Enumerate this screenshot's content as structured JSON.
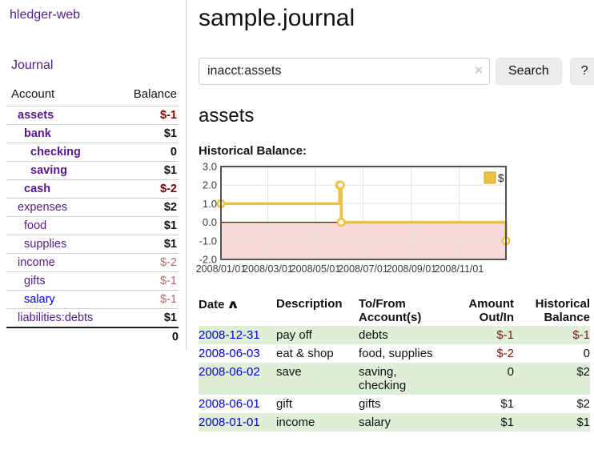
{
  "palette": {
    "link_purple": "#551a8b",
    "link_blue": "#0000dd",
    "negative_strong": "#7f0000",
    "negative_soft": "#b36a6a",
    "table_negative": "#7f1a1a",
    "row_stripe_green": "#dfeed6",
    "series_gold": "#EDC240",
    "chart_negative_fill": "#f8d9d9",
    "zero_line": "#8b0000",
    "grid_line": "#e4e4e4",
    "plot_border": "#545454",
    "clear_icon_color": "#cfc2e2"
  },
  "sidebar": {
    "app_title": "hledger-web",
    "journal_label": "Journal",
    "accounts_table": {
      "headers": {
        "account": "Account",
        "balance": "Balance"
      },
      "rows": [
        {
          "name": "assets",
          "depth": 1,
          "bold": true,
          "balance": "$-1",
          "negative": true,
          "link_color": "purple"
        },
        {
          "name": "bank",
          "depth": 2,
          "bold": true,
          "balance": "$1",
          "negative": false,
          "link_color": "purple"
        },
        {
          "name": "checking",
          "depth": 3,
          "bold": true,
          "balance": "0",
          "negative": false,
          "link_color": "purple"
        },
        {
          "name": "saving",
          "depth": 3,
          "bold": true,
          "balance": "$1",
          "negative": false,
          "link_color": "purple"
        },
        {
          "name": "cash",
          "depth": 2,
          "bold": true,
          "balance": "$-2",
          "negative": true,
          "link_color": "purple"
        },
        {
          "name": "expenses",
          "depth": 1,
          "bold": false,
          "balance": "$2",
          "negative": false,
          "link_color": "purple"
        },
        {
          "name": "food",
          "depth": 2,
          "bold": false,
          "balance": "$1",
          "negative": false,
          "link_color": "purple"
        },
        {
          "name": "supplies",
          "depth": 2,
          "bold": false,
          "balance": "$1",
          "negative": false,
          "link_color": "purple"
        },
        {
          "name": "income",
          "depth": 1,
          "bold": false,
          "balance": "$-2",
          "negative": true,
          "link_color": "purple"
        },
        {
          "name": "gifts",
          "depth": 2,
          "bold": false,
          "balance": "$-1",
          "negative": true,
          "link_color": "purple"
        },
        {
          "name": "salary",
          "depth": 2,
          "bold": false,
          "balance": "$-1",
          "negative": true,
          "link_color": "blue"
        },
        {
          "name": "liabilities:debts",
          "depth": 1,
          "bold": false,
          "balance": "$1",
          "negative": false,
          "link_color": "purple"
        }
      ],
      "total": "0"
    }
  },
  "header": {
    "title": "sample.journal"
  },
  "search": {
    "value": "inacct:assets",
    "clear_icon": "×",
    "button_label": "Search",
    "help_label": "?"
  },
  "account_page": {
    "title": "assets",
    "chart_label": "Historical Balance:"
  },
  "chart_data": {
    "type": "line",
    "step": true,
    "title": "Historical Balance",
    "series": [
      {
        "name": "$",
        "color": "#EDC240",
        "points": [
          {
            "date": "2008-01-01",
            "value": 1
          },
          {
            "date": "2008-06-01",
            "value": 2
          },
          {
            "date": "2008-06-02",
            "value": 2
          },
          {
            "date": "2008-06-03",
            "value": 0
          },
          {
            "date": "2008-12-31",
            "value": -1
          }
        ]
      }
    ],
    "ylim": [
      -2,
      3
    ],
    "y_ticks": [
      "3.0",
      "2.0",
      "1.0",
      "0.0",
      "-1.0",
      "-2.0"
    ],
    "y_tick_values": [
      3,
      2,
      1,
      0,
      -1,
      -2
    ],
    "x_ticks": [
      "2008/01/01",
      "2008/03/01",
      "2008/05/01",
      "2008/07/01",
      "2008/09/01",
      "2008/11/01"
    ],
    "x_range": [
      "2008-01-01",
      "2008-12-31"
    ],
    "grid": true,
    "negative_region_shaded": true,
    "legend": {
      "position": "top-right",
      "label": "$",
      "swatch_color": "#EDC240"
    }
  },
  "register_table": {
    "headers": {
      "date": "Date",
      "sort_indicator": "∧",
      "description": "Description",
      "tofrom": "To/From\nAccount(s)",
      "amount": "Amount\nOut/In",
      "balance": "Historical\nBalance"
    },
    "rows": [
      {
        "date": "2008-12-31",
        "description": "pay off",
        "accounts": "debts",
        "amount": "$-1",
        "amount_negative": true,
        "balance": "$-1",
        "balance_negative": true,
        "shaded": true
      },
      {
        "date": "2008-06-03",
        "description": "eat & shop",
        "accounts": "food, supplies",
        "amount": "$-2",
        "amount_negative": true,
        "balance": "0",
        "balance_negative": false,
        "shaded": false
      },
      {
        "date": "2008-06-02",
        "description": "save",
        "accounts": "saving,\nchecking",
        "amount": "0",
        "amount_negative": false,
        "balance": "$2",
        "balance_negative": false,
        "shaded": true
      },
      {
        "date": "2008-06-01",
        "description": "gift",
        "accounts": "gifts",
        "amount": "$1",
        "amount_negative": false,
        "balance": "$2",
        "balance_negative": false,
        "shaded": false
      },
      {
        "date": "2008-01-01",
        "description": "income",
        "accounts": "salary",
        "amount": "$1",
        "amount_negative": false,
        "balance": "$1",
        "balance_negative": false,
        "shaded": true
      }
    ]
  }
}
